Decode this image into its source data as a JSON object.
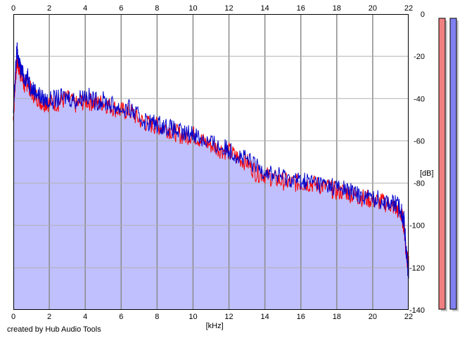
{
  "chart_data": {
    "type": "area",
    "xlabel": "[kHz]",
    "ylabel": "[dB]",
    "xlim": [
      0,
      22
    ],
    "ylim": [
      -140,
      0
    ],
    "x_ticks": [
      "0",
      "2",
      "4",
      "6",
      "8",
      "10",
      "12",
      "14",
      "16",
      "18",
      "20",
      "22"
    ],
    "y_ticks": [
      "0",
      "-20",
      "-40",
      "-60",
      "-80",
      "-100",
      "-120",
      "-140"
    ],
    "grid": true,
    "series": [
      {
        "color": "#ff0000",
        "x": [
          0,
          0.1,
          0.2,
          0.3,
          0.4,
          0.6,
          0.8,
          1.0,
          1.3,
          1.6,
          2.0,
          2.5,
          3.0,
          3.5,
          4.0,
          4.5,
          5.0,
          5.5,
          6.0,
          6.5,
          7.0,
          7.5,
          8.0,
          8.5,
          9.0,
          9.5,
          10.0,
          10.5,
          11.0,
          11.5,
          12.0,
          12.5,
          13.0,
          13.5,
          14.0,
          14.5,
          15.0,
          15.5,
          16.0,
          16.5,
          17.0,
          17.5,
          18.0,
          18.5,
          19.0,
          19.5,
          20.0,
          20.5,
          21.0,
          21.3,
          21.6,
          21.75,
          21.85,
          21.95,
          22.0
        ],
        "values": [
          -50,
          -32,
          -22,
          -25,
          -28,
          -34,
          -32,
          -37,
          -39,
          -42,
          -42,
          -42,
          -40,
          -43,
          -41,
          -42,
          -42,
          -44,
          -46,
          -46,
          -50,
          -52,
          -53,
          -54,
          -56,
          -58,
          -57,
          -60,
          -62,
          -64,
          -65,
          -68,
          -70,
          -75,
          -76,
          -78,
          -79,
          -80,
          -80,
          -80,
          -81,
          -82,
          -84,
          -84,
          -86,
          -87,
          -88,
          -89,
          -90,
          -92,
          -95,
          -100,
          -112,
          -117,
          -118
        ]
      },
      {
        "color": "#0000cc",
        "x": [
          0,
          0.1,
          0.2,
          0.3,
          0.4,
          0.6,
          0.8,
          1.0,
          1.3,
          1.6,
          2.0,
          2.5,
          3.0,
          3.5,
          4.0,
          4.5,
          5.0,
          5.5,
          6.0,
          6.5,
          7.0,
          7.5,
          8.0,
          8.5,
          9.0,
          9.5,
          10.0,
          10.5,
          11.0,
          11.5,
          12.0,
          12.5,
          13.0,
          13.5,
          14.0,
          14.5,
          15.0,
          15.5,
          16.0,
          16.5,
          17.0,
          17.5,
          18.0,
          18.5,
          19.0,
          19.5,
          20.0,
          20.5,
          21.0,
          21.3,
          21.6,
          21.75,
          21.85,
          21.95,
          22.0
        ],
        "values": [
          -48,
          -30,
          -17,
          -22,
          -26,
          -30,
          -30,
          -35,
          -37,
          -40,
          -41,
          -40,
          -39,
          -41,
          -38,
          -41,
          -41,
          -43,
          -45,
          -45,
          -49,
          -51,
          -52,
          -53,
          -55,
          -57,
          -56,
          -59,
          -61,
          -63,
          -64,
          -67,
          -69,
          -72,
          -74,
          -76,
          -77,
          -78,
          -79,
          -79,
          -80,
          -81,
          -82,
          -83,
          -85,
          -86,
          -87,
          -88,
          -89,
          -90,
          -93,
          -98,
          -110,
          -120,
          -121
        ]
      }
    ],
    "fill_color": "#c0c0ff",
    "level_meters": [
      {
        "color": "#f08080",
        "value": 1.0
      },
      {
        "color": "#8080f0",
        "value": 1.0
      }
    ]
  },
  "footer": {
    "credit": "created by Hub Audio Tools"
  }
}
